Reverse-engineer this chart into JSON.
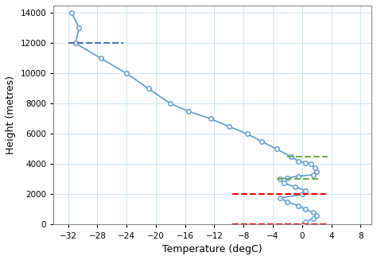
{
  "line_color": "#5b9bd5",
  "grid_color": "#c5dff0",
  "blue_dash_color": "#4472c4",
  "red_dash_color": "#ff0000",
  "green_dash_color": "#70ad47",
  "xlabel": "Temperature (degC)",
  "ylabel": "Height (metres)",
  "xlim": [
    -34,
    9.5
  ],
  "ylim": [
    0,
    14500
  ],
  "xticks": [
    -32.0,
    -28.0,
    -24.0,
    -20.0,
    -16.0,
    -12.0,
    -8.0,
    -4.0,
    0.0,
    4.0,
    8.0
  ],
  "yticks": [
    0,
    2000,
    4000,
    6000,
    8000,
    10000,
    12000,
    14000
  ],
  "height_pts": [
    0,
    200,
    400,
    600,
    800,
    1000,
    1250,
    1500,
    1750,
    2000,
    2250,
    2500,
    2750,
    3000,
    3100,
    3200,
    3300,
    3500,
    3750,
    4000,
    4100,
    4200,
    4500,
    5000,
    5500,
    6000,
    6500,
    7000,
    7500,
    8000,
    9000,
    10000,
    11000,
    12000,
    13000,
    14000
  ],
  "temp_pts": [
    0.1,
    0.5,
    1.5,
    2.0,
    1.5,
    0.5,
    -0.5,
    -2.0,
    -3.0,
    0.0,
    0.5,
    -1.0,
    -2.5,
    -3.0,
    -2.0,
    -0.5,
    1.5,
    2.0,
    1.8,
    1.2,
    0.5,
    -0.5,
    -1.5,
    -3.5,
    -5.5,
    -7.5,
    -10.0,
    -12.5,
    -15.5,
    -18.0,
    -21.0,
    -24.0,
    -27.5,
    -31.0,
    -30.5,
    -31.5
  ],
  "blue_dash_y": 12000,
  "blue_dash_xmin": -32.0,
  "blue_dash_xmax": -24.5,
  "red_dash_y1": 0,
  "red_dash_y2": 2000,
  "red_dash_xmin": -9.5,
  "red_dash_xmax": 3.5,
  "green_dash_y1": 3000,
  "green_dash_y1_xmin": -3.5,
  "green_dash_y1_xmax": 2.5,
  "green_dash_y2": 4500,
  "green_dash_y2_xmin": -2.0,
  "green_dash_y2_xmax": 3.5
}
